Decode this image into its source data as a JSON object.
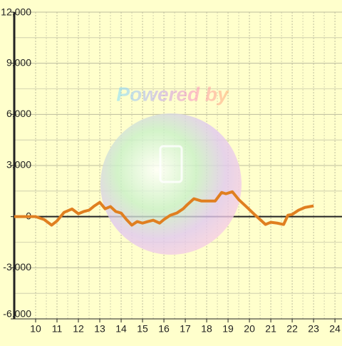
{
  "chart_data": {
    "type": "line",
    "watermark": "Powered by",
    "x": [
      9,
      10,
      10.4,
      10.75,
      11,
      11.33,
      11.7,
      12,
      12.25,
      12.5,
      12.75,
      13,
      13.25,
      13.5,
      13.75,
      14,
      14.25,
      14.5,
      14.75,
      15,
      15.25,
      15.5,
      15.8,
      16,
      16.3,
      16.6,
      16.9,
      17.1,
      17.4,
      17.75,
      18,
      18.4,
      18.7,
      18.9,
      19.2,
      19.5,
      19.85,
      20.2,
      20.5,
      20.75,
      21,
      21.3,
      21.6,
      21.8,
      22,
      22.3,
      22.6,
      23
    ],
    "series": [
      {
        "color": "#e07f20",
        "values": [
          0,
          0,
          -170,
          -500,
          -250,
          250,
          450,
          170,
          300,
          380,
          630,
          840,
          460,
          590,
          300,
          210,
          -170,
          -500,
          -290,
          -380,
          -290,
          -210,
          -380,
          -170,
          80,
          210,
          460,
          710,
          1050,
          920,
          920,
          920,
          1420,
          1340,
          1460,
          1000,
          590,
          170,
          -170,
          -460,
          -330,
          -380,
          -460,
          80,
          130,
          380,
          540,
          630
        ]
      }
    ],
    "xlim": [
      9,
      24.33
    ],
    "xticks": [
      10,
      11,
      12,
      13,
      14,
      15,
      16,
      17,
      18,
      19,
      20,
      21,
      22,
      23,
      24
    ],
    "ylim": [
      -6000,
      12000
    ],
    "yticks": [
      {
        "value": -6000,
        "label": "-6,000"
      },
      {
        "value": -3000,
        "label": "-3,000"
      },
      0,
      {
        "value": 3000,
        "label": "3,000"
      },
      {
        "value": 6000,
        "label": "6,000"
      },
      {
        "value": 9000,
        "label": "9,000"
      },
      {
        "value": 12000,
        "label": "12,000"
      }
    ],
    "grid": true
  }
}
